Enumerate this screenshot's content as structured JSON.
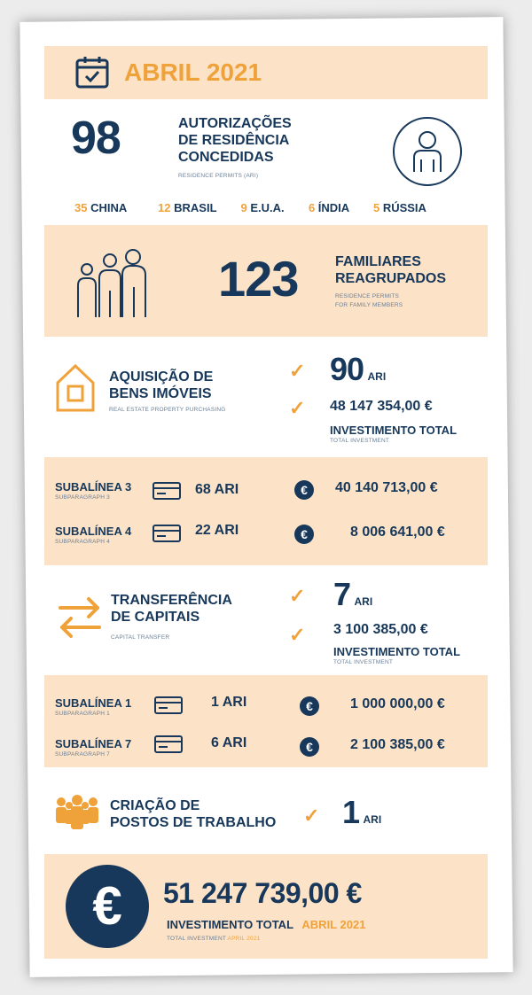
{
  "header": {
    "title": "ABRIL 2021"
  },
  "section1": {
    "count": "98",
    "title_line1": "AUTORIZAÇÕES",
    "title_line2": "DE RESIDÊNCIA",
    "title_line3": "CONCEDIDAS",
    "subtitle": "RESIDENCE PERMITS (ARI)",
    "countries": [
      {
        "num": "35",
        "name": "CHINA"
      },
      {
        "num": "12",
        "name": "BRASIL"
      },
      {
        "num": "9",
        "name": "E.U.A."
      },
      {
        "num": "6",
        "name": "ÍNDIA"
      },
      {
        "num": "5",
        "name": "RÚSSIA"
      }
    ]
  },
  "section2": {
    "count": "123",
    "title_line1": "FAMILIARES",
    "title_line2": "REAGRUPADOS",
    "subtitle_line1": "RESIDENCE PERMITS",
    "subtitle_line2": "FOR FAMILY MEMBERS"
  },
  "section3": {
    "title_line1": "AQUISIÇÃO DE",
    "title_line2": "BENS IMÓVEIS",
    "subtitle": "REAL ESTATE PROPERTY PURCHASING",
    "ari_count": "90",
    "ari_label": "ARI",
    "amount": "48 147 354,00 €",
    "total_label": "INVESTIMENTO TOTAL",
    "total_sub": "TOTAL INVESTMENT"
  },
  "section3_detail": [
    {
      "label": "SUBALÍNEA 3",
      "sub": "SUBPARAGRAPH 3",
      "ari": "68 ARI",
      "amount": "40 140 713,00 €"
    },
    {
      "label": "SUBALÍNEA 4",
      "sub": "SUBPARAGRAPH 4",
      "ari": "22 ARI",
      "amount": "8 006 641,00 €"
    }
  ],
  "section4": {
    "title_line1": "TRANSFERÊNCIA",
    "title_line2": "DE CAPITAIS",
    "subtitle": "CAPITAL TRANSFER",
    "ari_count": "7",
    "ari_label": "ARI",
    "amount": "3 100 385,00 €",
    "total_label": "INVESTIMENTO TOTAL",
    "total_sub": "TOTAL INVESTMENT"
  },
  "section4_detail": [
    {
      "label": "SUBALÍNEA 1",
      "sub": "SUBPARAGRAPH 1",
      "ari": "1 ARI",
      "amount": "1 000 000,00 €"
    },
    {
      "label": "SUBALÍNEA 7",
      "sub": "SUBPARAGRAPH 7",
      "ari": "6 ARI",
      "amount": "2 100 385,00 €"
    }
  ],
  "section5": {
    "title_line1": "CRIAÇÃO DE",
    "title_line2": "POSTOS DE TRABALHO",
    "ari_count": "1",
    "ari_label": "ARI"
  },
  "footer": {
    "euro_symbol": "€",
    "amount": "51 247 739,00 €",
    "label": "INVESTIMENTO TOTAL",
    "label_period": "ABRIL 2021",
    "sub": "TOTAL INVESTMENT",
    "sub_period": "APRIL 2021"
  },
  "colors": {
    "navy": "#17385a",
    "orange": "#f0a23a",
    "peach": "#fce2c6"
  },
  "icons": [
    "calendar-check-icon",
    "person-circle-icon",
    "family-icon",
    "house-icon",
    "check-icon",
    "card-icon",
    "euro-icon",
    "transfer-arrows-icon",
    "workers-icon"
  ]
}
